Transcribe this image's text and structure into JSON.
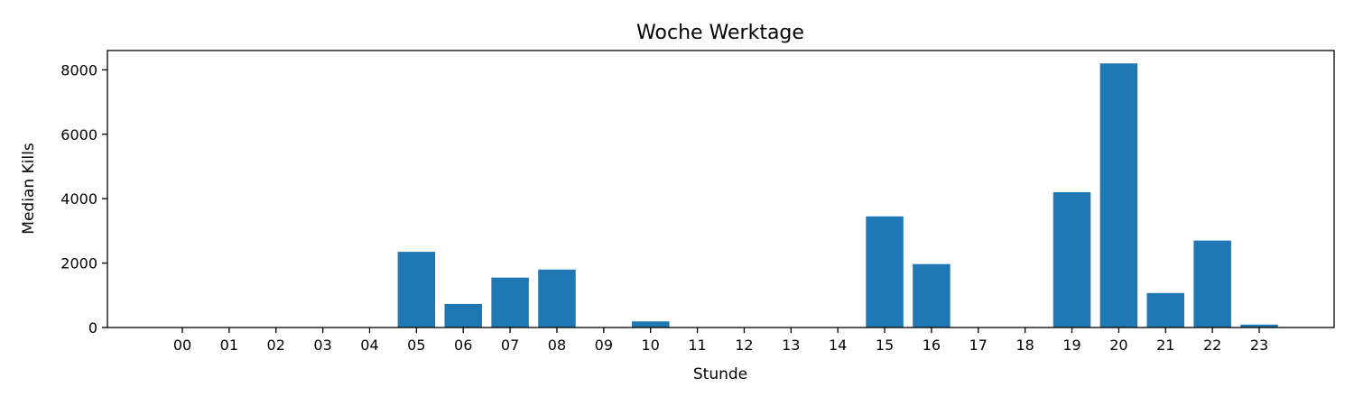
{
  "chart_data": {
    "type": "bar",
    "title": "Woche Werktage",
    "xlabel": "Stunde",
    "ylabel": "Median Kills",
    "categories": [
      "00",
      "01",
      "02",
      "03",
      "04",
      "05",
      "06",
      "07",
      "08",
      "09",
      "10",
      "11",
      "12",
      "13",
      "14",
      "15",
      "16",
      "17",
      "18",
      "19",
      "20",
      "21",
      "22",
      "23"
    ],
    "values": [
      0,
      0,
      0,
      0,
      0,
      2350,
      730,
      1550,
      1800,
      0,
      190,
      0,
      0,
      0,
      0,
      3450,
      1970,
      0,
      0,
      4200,
      8200,
      1070,
      2700,
      90
    ],
    "ylim": [
      0,
      8600
    ],
    "yticks": [
      0,
      2000,
      4000,
      6000,
      8000
    ],
    "grid": false,
    "bar_color": "#1f77b4"
  }
}
